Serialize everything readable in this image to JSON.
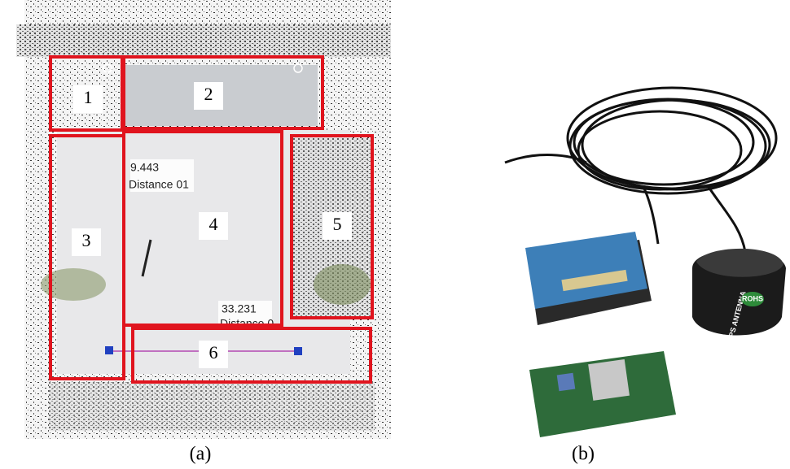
{
  "panels": [
    {
      "caption": "(a)",
      "regions": [
        "1",
        "2",
        "3",
        "4",
        "5",
        "6"
      ],
      "measurements": [
        {
          "value": "9.443",
          "label": "Distance 01"
        },
        {
          "value": "33.231",
          "label": "Distance 0"
        }
      ]
    },
    {
      "caption": "(b)",
      "labels": [
        "GPS ANTENNA",
        "ROHS"
      ]
    }
  ]
}
